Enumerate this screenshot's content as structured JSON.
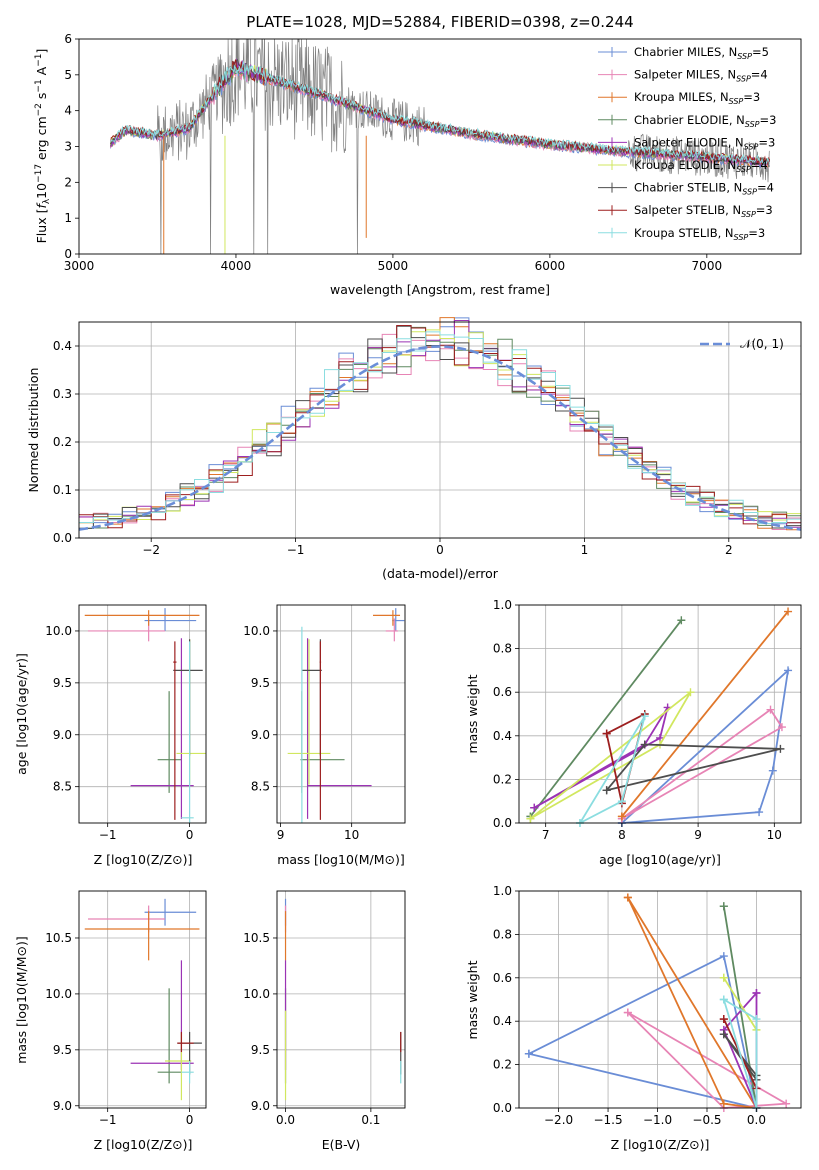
{
  "colors": {
    "series": [
      "#6a8dd6",
      "#e784b5",
      "#e0772b",
      "#5f8a61",
      "#9b33b4",
      "#d1e75f",
      "#4e4e4e",
      "#9d1f1f",
      "#8bdde0"
    ],
    "normal_fit": "#6a8ed8",
    "grid": "#b0b0b0",
    "spectrum_data": "#808080"
  },
  "chart_data": [
    {
      "id": "spectrum",
      "type": "line",
      "title": "PLATE=1028, MJD=52884, FIBERID=0398, z=0.244",
      "xlabel": "wavelength [Angstrom, rest frame]",
      "ylabel_parts": [
        "Flux [",
        "f",
        "λ",
        "10",
        "−17",
        " erg cm",
        "−2",
        " s",
        "−1",
        " A",
        "−1",
        "]"
      ],
      "xlim": [
        3000,
        7600
      ],
      "ylim": [
        0,
        6
      ],
      "xticks": [
        3000,
        4000,
        5000,
        6000,
        7000
      ],
      "yticks": [
        0,
        1,
        2,
        3,
        4,
        5,
        6
      ],
      "grid": false,
      "legend_position": "top-right",
      "legend": [
        {
          "lib": "Chabrier MILES, N",
          "n": "=5"
        },
        {
          "lib": "Salpeter MILES, N",
          "n": "=4"
        },
        {
          "lib": "Kroupa MILES, N",
          "n": "=3"
        },
        {
          "lib": "Chabrier ELODIE, N",
          "n": "=3"
        },
        {
          "lib": "Salpeter ELODIE, N",
          "n": "=3"
        },
        {
          "lib": "Kroupa ELODIE, N",
          "n": "=4"
        },
        {
          "lib": "Chabrier STELIB, N",
          "n": "=4"
        },
        {
          "lib": "Salpeter STELIB, N",
          "n": "=3"
        },
        {
          "lib": "Kroupa STELIB, N",
          "n": "=3"
        }
      ],
      "legend_sub": "SSP",
      "continuum": {
        "x": [
          3200,
          3300,
          3500,
          3700,
          3900,
          4000,
          4200,
          4500,
          5000,
          5500,
          6000,
          6500,
          7000,
          7400
        ],
        "y": [
          3.1,
          3.45,
          3.3,
          3.5,
          4.7,
          5.2,
          4.9,
          4.5,
          3.75,
          3.35,
          3.05,
          2.85,
          2.7,
          2.55
        ]
      }
    },
    {
      "id": "residuals",
      "type": "line",
      "xlabel": "(data-model)/error",
      "ylabel": "Normed distribution",
      "xlim": [
        -2.5,
        2.5
      ],
      "ylim": [
        0,
        0.45
      ],
      "xticks": [
        -2,
        -1,
        0,
        1,
        2
      ],
      "xtick_labels": [
        "−2",
        "−1",
        "0",
        "1",
        "2"
      ],
      "yticks": [
        0,
        0.1,
        0.2,
        0.3,
        0.4
      ],
      "ytick_labels": [
        "0.0",
        "0.1",
        "0.2",
        "0.3",
        "0.4"
      ],
      "grid": true,
      "legend_position": "top-right",
      "legend_label": "𝒩(0, 1)",
      "bin_width": 0.1
    },
    {
      "id": "age_vs_z",
      "type": "scatter",
      "xlabel": "Z [log10(Z/Z⊙)]",
      "ylabel": "age  [log10(age/yr)]",
      "xlim": [
        -1.35,
        0.2
      ],
      "ylim": [
        8.15,
        10.25
      ],
      "xticks": [
        -1,
        0
      ],
      "xtick_labels": [
        "−1",
        "0"
      ],
      "yticks": [
        8.5,
        9.0,
        9.5,
        10.0
      ],
      "ytick_labels": [
        "8.5",
        "9.0",
        "9.5",
        "10.0"
      ],
      "grid": true,
      "points": [
        {
          "x": -0.3,
          "xerr": [
            0.25,
            0.38
          ],
          "y": 10.1,
          "yerr": [
            0.1,
            0.12
          ]
        },
        {
          "x": -0.5,
          "xerr": [
            0.74,
            0.2
          ],
          "y": 10.0,
          "yerr": [
            0.1,
            0.12
          ]
        },
        {
          "x": -0.5,
          "xerr": [
            0.78,
            0.62
          ],
          "y": 10.15,
          "yerr": [
            0.1,
            0.05
          ]
        },
        {
          "x": -0.25,
          "xerr": [
            0.14,
            0.15
          ],
          "y": 8.76,
          "yerr": [
            0.32,
            0.66
          ]
        },
        {
          "x": -0.1,
          "xerr": [
            0.62,
            0.15
          ],
          "y": 8.51,
          "yerr": [
            0.32,
            1.42
          ]
        },
        {
          "x": 0.0,
          "xerr": [
            0.16,
            0.2
          ],
          "y": 8.82,
          "yerr": [
            0.3,
            1.1
          ]
        },
        {
          "x": 0.0,
          "xerr": [
            0.2,
            0.16
          ],
          "y": 9.62,
          "yerr": [
            0.82,
            0.3
          ]
        },
        {
          "x": -0.18,
          "xerr": [
            0.02,
            0.02
          ],
          "y": 9.7,
          "yerr": [
            1.52,
            0.2
          ]
        },
        {
          "x": 0.0,
          "xerr": [
            0.1,
            0.05
          ],
          "y": 8.2,
          "yerr": [
            0.05,
            1.7
          ]
        }
      ]
    },
    {
      "id": "age_vs_mass",
      "type": "scatter",
      "xlabel": "mass [log10(M/M⊙)]",
      "ylabel": "",
      "xlim": [
        8.95,
        10.75
      ],
      "ylim": [
        8.15,
        10.25
      ],
      "xticks": [
        9,
        10
      ],
      "xtick_labels": [
        "9",
        "10"
      ],
      "yticks": [
        8.5,
        9.0,
        9.5,
        10.0
      ],
      "ytick_labels": [
        "8.5",
        "9.0",
        "9.5",
        "10.0"
      ],
      "grid": true,
      "points": [
        {
          "x": 10.62,
          "xerr": [
            0.05,
            0.12
          ],
          "y": 10.1,
          "yerr": [
            0.1,
            0.12
          ]
        },
        {
          "x": 10.6,
          "xerr": [
            0.12,
            0.05
          ],
          "y": 10.0,
          "yerr": [
            0.1,
            0.12
          ]
        },
        {
          "x": 10.58,
          "xerr": [
            0.28,
            0.1
          ],
          "y": 10.15,
          "yerr": [
            0.1,
            0.05
          ]
        },
        {
          "x": 9.3,
          "xerr": [
            0.02,
            0.6
          ],
          "y": 8.76,
          "yerr": [
            0.32,
            0.66
          ]
        },
        {
          "x": 9.38,
          "xerr": [
            0.0,
            0.9
          ],
          "y": 8.51,
          "yerr": [
            0.32,
            1.42
          ]
        },
        {
          "x": 9.4,
          "xerr": [
            0.3,
            0.3
          ],
          "y": 8.82,
          "yerr": [
            0.3,
            1.1
          ]
        },
        {
          "x": 9.56,
          "xerr": [
            0.26,
            0.02
          ],
          "y": 9.62,
          "yerr": [
            0.82,
            0.3
          ]
        },
        {
          "x": 9.56,
          "xerr": [
            0.01,
            0.01
          ],
          "y": 9.7,
          "yerr": [
            1.52,
            0.2
          ]
        },
        {
          "x": 9.3,
          "xerr": [
            0.0,
            0.0
          ],
          "y": 8.2,
          "yerr": [
            0.05,
            1.84
          ]
        }
      ]
    },
    {
      "id": "weight_vs_age",
      "type": "line",
      "xlabel": "age  [log10(age/yr)]",
      "ylabel": "mass weight",
      "xlim": [
        6.65,
        10.35
      ],
      "ylim": [
        0,
        1
      ],
      "xticks": [
        7,
        8,
        9,
        10
      ],
      "xtick_labels": [
        "7",
        "8",
        "9",
        "10"
      ],
      "yticks": [
        0,
        0.2,
        0.4,
        0.6,
        0.8,
        1.0
      ],
      "ytick_labels": [
        "0.0",
        "0.2",
        "0.4",
        "0.6",
        "0.8",
        "1.0"
      ],
      "grid": true,
      "series": [
        {
          "x": [
            8.0,
            9.8,
            9.98,
            10.18,
            8.0
          ],
          "y": [
            0.0,
            0.05,
            0.24,
            0.7,
            0.0
          ]
        },
        {
          "x": [
            8.0,
            9.95,
            10.1,
            8.0
          ],
          "y": [
            0.02,
            0.52,
            0.44,
            0.02
          ]
        },
        {
          "x": [
            8.0,
            10.18,
            8.0
          ],
          "y": [
            0.03,
            0.97,
            0.03
          ]
        },
        {
          "x": [
            6.8,
            8.78,
            6.8
          ],
          "y": [
            0.03,
            0.93,
            0.03
          ]
        },
        {
          "x": [
            6.85,
            8.3,
            8.6,
            8.5,
            6.85
          ],
          "y": [
            0.07,
            0.36,
            0.53,
            0.39,
            0.07
          ]
        },
        {
          "x": [
            6.8,
            8.9,
            8.5,
            6.8
          ],
          "y": [
            0.02,
            0.6,
            0.36,
            0.02
          ]
        },
        {
          "x": [
            7.8,
            8.3,
            10.08,
            7.8
          ],
          "y": [
            0.15,
            0.36,
            0.34,
            0.15
          ]
        },
        {
          "x": [
            7.8,
            8.0,
            8.3,
            7.8
          ],
          "y": [
            0.41,
            0.09,
            0.5,
            0.41
          ]
        },
        {
          "x": [
            7.45,
            8.0,
            8.3,
            7.45
          ],
          "y": [
            0.0,
            0.1,
            0.49,
            0.0
          ]
        }
      ]
    },
    {
      "id": "mass_vs_z",
      "type": "scatter",
      "xlabel": "Z [log10(Z/Z⊙)]",
      "ylabel": "mass [log10(M/M⊙)]",
      "xlim": [
        -1.35,
        0.2
      ],
      "ylim": [
        8.98,
        10.92
      ],
      "xticks": [
        -1,
        0
      ],
      "xtick_labels": [
        "−1",
        "0"
      ],
      "yticks": [
        9.0,
        9.5,
        10.0,
        10.5
      ],
      "ytick_labels": [
        "9.0",
        "9.5",
        "10.0",
        "10.5"
      ],
      "grid": true,
      "points": [
        {
          "x": -0.3,
          "xerr": [
            0.25,
            0.38
          ],
          "y": 10.73,
          "yerr": [
            0.12,
            0.12
          ]
        },
        {
          "x": -0.5,
          "xerr": [
            0.74,
            0.2
          ],
          "y": 10.67,
          "yerr": [
            0.12,
            0.12
          ]
        },
        {
          "x": -0.5,
          "xerr": [
            0.78,
            0.62
          ],
          "y": 10.58,
          "yerr": [
            0.28,
            0.16
          ]
        },
        {
          "x": -0.25,
          "xerr": [
            0.14,
            0.15
          ],
          "y": 9.3,
          "yerr": [
            0.1,
            0.75
          ]
        },
        {
          "x": -0.1,
          "xerr": [
            0.62,
            0.15
          ],
          "y": 9.38,
          "yerr": [
            0.06,
            0.92
          ]
        },
        {
          "x": -0.1,
          "xerr": [
            0.2,
            0.12
          ],
          "y": 9.4,
          "yerr": [
            0.35,
            0.25
          ]
        },
        {
          "x": 0.0,
          "xerr": [
            0.15,
            0.15
          ],
          "y": 9.56,
          "yerr": [
            0.28,
            0.1
          ]
        },
        {
          "x": -0.1,
          "xerr": [
            0.05,
            0.15
          ],
          "y": 9.56,
          "yerr": [
            0.08,
            0.1
          ]
        },
        {
          "x": 0.0,
          "xerr": [
            0.1,
            0.05
          ],
          "y": 9.3,
          "yerr": [
            0.1,
            0.1
          ]
        }
      ]
    },
    {
      "id": "mass_vs_ebv",
      "type": "scatter",
      "xlabel": "E(B-V)",
      "ylabel": "",
      "xlim": [
        -0.01,
        0.14
      ],
      "ylim": [
        8.98,
        10.92
      ],
      "xticks": [
        0.0,
        0.1
      ],
      "xtick_labels": [
        "0.0",
        "0.1"
      ],
      "yticks": [
        9.0,
        9.5,
        10.0,
        10.5
      ],
      "ytick_labels": [
        "9.0",
        "9.5",
        "10.0",
        "10.5"
      ],
      "grid": true,
      "points": [
        {
          "x": 0.0,
          "xerr": [
            0,
            0
          ],
          "y": 10.73,
          "yerr": [
            0.12,
            0.12
          ]
        },
        {
          "x": 0.0,
          "xerr": [
            0,
            0
          ],
          "y": 10.67,
          "yerr": [
            0.12,
            0.12
          ]
        },
        {
          "x": 0.0,
          "xerr": [
            0,
            0
          ],
          "y": 10.58,
          "yerr": [
            0.28,
            0.16
          ]
        },
        {
          "x": 0.0,
          "xerr": [
            0,
            0
          ],
          "y": 9.3,
          "yerr": [
            0.1,
            0.75
          ]
        },
        {
          "x": 0.0,
          "xerr": [
            0,
            0
          ],
          "y": 9.38,
          "yerr": [
            0.06,
            0.92
          ]
        },
        {
          "x": 0.0,
          "xerr": [
            0,
            0
          ],
          "y": 9.4,
          "yerr": [
            0.35,
            0.45
          ]
        },
        {
          "x": 0.135,
          "xerr": [
            0,
            0
          ],
          "y": 9.56,
          "yerr": [
            0.28,
            0.1
          ]
        },
        {
          "x": 0.135,
          "xerr": [
            0,
            0
          ],
          "y": 9.56,
          "yerr": [
            0.08,
            0.1
          ]
        },
        {
          "x": 0.135,
          "xerr": [
            0,
            0
          ],
          "y": 9.3,
          "yerr": [
            0.1,
            0.1
          ]
        }
      ]
    },
    {
      "id": "weight_vs_z",
      "type": "line",
      "xlabel": "Z [log10(Z/Z⊙)]",
      "ylabel": "mass weight",
      "xlim": [
        -2.4,
        0.45
      ],
      "ylim": [
        0,
        1
      ],
      "xticks": [
        -2.0,
        -1.5,
        -1.0,
        -0.5,
        0.0
      ],
      "xtick_labels": [
        "−2.0",
        "−1.5",
        "−1.0",
        "−0.5",
        "0.0"
      ],
      "yticks": [
        0,
        0.2,
        0.4,
        0.6,
        0.8,
        1.0
      ],
      "ytick_labels": [
        "0.0",
        "0.2",
        "0.4",
        "0.6",
        "0.8",
        "1.0"
      ],
      "grid": true,
      "series": [
        {
          "x": [
            -2.3,
            -0.33,
            0.0,
            0.0,
            -2.3
          ],
          "y": [
            0.25,
            0.7,
            0.0,
            0.0,
            0.25
          ]
        },
        {
          "x": [
            -1.3,
            0.3,
            -0.33,
            -1.3
          ],
          "y": [
            0.44,
            0.02,
            0.0,
            0.44
          ]
        },
        {
          "x": [
            -1.3,
            -0.33,
            0.0,
            -1.3
          ],
          "y": [
            0.97,
            0.02,
            0.0,
            0.97
          ]
        },
        {
          "x": [
            -0.33,
            0.0,
            -0.33
          ],
          "y": [
            0.93,
            0.0,
            0.93
          ]
        },
        {
          "x": [
            0.0,
            0.0,
            -0.33,
            0.0
          ],
          "y": [
            0.53,
            0.0,
            0.36,
            0.53
          ]
        },
        {
          "x": [
            -0.33,
            0.0,
            -0.33
          ],
          "y": [
            0.6,
            0.36,
            0.6
          ]
        },
        {
          "x": [
            -0.33,
            0.0,
            0.0,
            -0.33
          ],
          "y": [
            0.34,
            0.15,
            0.13,
            0.34
          ]
        },
        {
          "x": [
            -0.33,
            0.0,
            -0.33
          ],
          "y": [
            0.41,
            0.09,
            0.41
          ]
        },
        {
          "x": [
            -0.33,
            0.0,
            0.0,
            -0.33
          ],
          "y": [
            0.5,
            0.41,
            0.0,
            0.5
          ]
        }
      ]
    }
  ]
}
